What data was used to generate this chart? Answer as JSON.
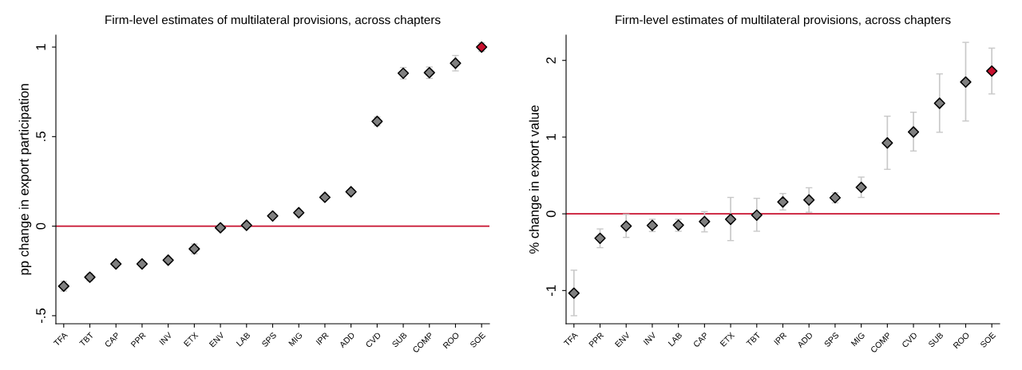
{
  "chart_data": [
    {
      "type": "scatter",
      "title": "Firm-level estimates of multilateral provisions, across chapters",
      "ylabel": "pp change in export participation",
      "categories": [
        "TFA",
        "TBT",
        "CAP",
        "PPR",
        "INV",
        "ETX",
        "ENV",
        "LAB",
        "SPS",
        "MIG",
        "IPR",
        "ADD",
        "CVD",
        "SUB",
        "COMP",
        "ROO",
        "SOE"
      ],
      "values": [
        -0.335,
        -0.285,
        -0.211,
        -0.211,
        -0.19,
        -0.127,
        -0.009,
        0.005,
        0.057,
        0.075,
        0.161,
        0.192,
        0.585,
        0.854,
        0.857,
        0.91,
        1.0
      ],
      "errors": [
        0.027,
        0.02,
        0.01,
        0.01,
        0.01,
        0.027,
        0.01,
        0.01,
        0.01,
        0.01,
        0.01,
        0.01,
        0.024,
        0.032,
        0.032,
        0.043,
        0.024
      ],
      "colors": [
        "#808080",
        "#808080",
        "#808080",
        "#808080",
        "#808080",
        "#808080",
        "#808080",
        "#808080",
        "#808080",
        "#808080",
        "#808080",
        "#808080",
        "#808080",
        "#808080",
        "#808080",
        "#808080",
        "#c8102e"
      ],
      "marker": "diamond",
      "ylim": [
        -0.545,
        1.067
      ],
      "yticks": [
        {
          "value": -0.5,
          "label": "-.5"
        },
        0,
        {
          "value": 0.5,
          "label": ".5"
        },
        1
      ],
      "ref_lines": [
        {
          "axis": "y",
          "value": 0,
          "color": "#c8102e",
          "line_style": "solid"
        }
      ],
      "grid": false,
      "legend": false
    },
    {
      "type": "scatter",
      "title": "Firm-level estimates of multilateral provisions, across chapters",
      "ylabel": "% change in export value",
      "categories": [
        "TFA",
        "PPR",
        "ENV",
        "INV",
        "LAB",
        "CAP",
        "ETX",
        "TBT",
        "IPR",
        "ADD",
        "SPS",
        "MIG",
        "COMP",
        "CVD",
        "SUB",
        "ROO",
        "SOE"
      ],
      "values": [
        -1.034,
        -0.319,
        -0.16,
        -0.151,
        -0.147,
        -0.101,
        -0.071,
        -0.017,
        0.155,
        0.181,
        0.21,
        0.345,
        0.924,
        1.067,
        1.441,
        1.718,
        1.861
      ],
      "errors": [
        [
          -1.328,
          -0.735
        ],
        [
          -0.441,
          -0.197
        ],
        [
          -0.307,
          -0.008
        ],
        [
          -0.231,
          -0.071
        ],
        [
          -0.227,
          -0.071
        ],
        [
          -0.235,
          0.029
        ],
        [
          -0.349,
          0.214
        ],
        [
          -0.227,
          0.202
        ],
        [
          0.05,
          0.265
        ],
        [
          0.021,
          0.34
        ],
        [
          0.143,
          0.273
        ],
        [
          0.214,
          0.479
        ],
        [
          0.58,
          1.273
        ],
        [
          0.819,
          1.324
        ],
        [
          1.063,
          1.824
        ],
        [
          1.21,
          2.235
        ],
        [
          1.563,
          2.16
        ]
      ],
      "colors": [
        "#808080",
        "#808080",
        "#808080",
        "#808080",
        "#808080",
        "#808080",
        "#808080",
        "#808080",
        "#808080",
        "#808080",
        "#808080",
        "#808080",
        "#808080",
        "#808080",
        "#808080",
        "#808080",
        "#c8102e"
      ],
      "marker": "diamond",
      "ylim": [
        -1.433,
        2.33
      ],
      "yticks": [
        -1,
        0,
        1,
        2
      ],
      "ref_lines": [
        {
          "axis": "y",
          "value": 0,
          "color": "#c8102e",
          "line_style": "solid"
        }
      ],
      "grid": false,
      "legend": false
    }
  ]
}
